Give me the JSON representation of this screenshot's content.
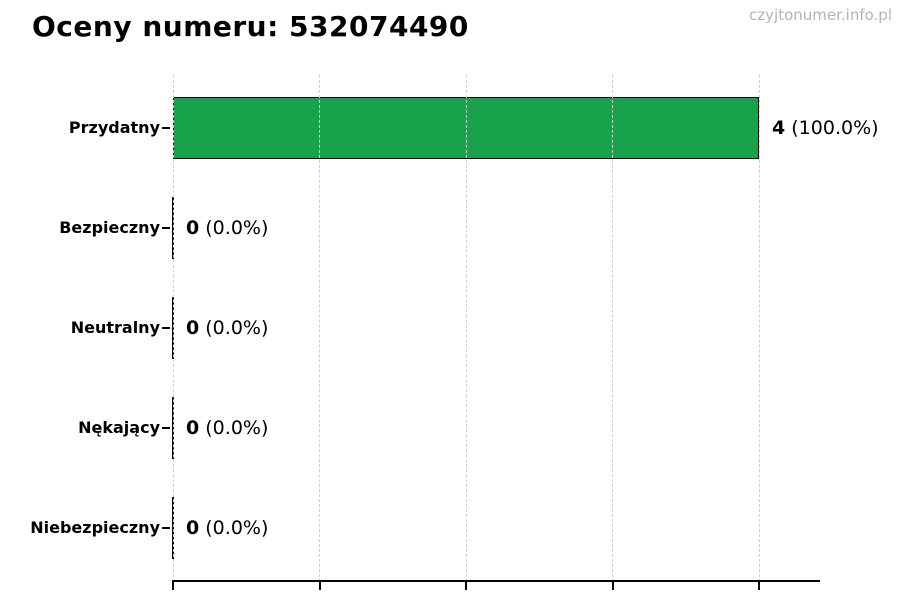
{
  "header": {
    "title": "Oceny numeru: 532074490",
    "watermark": "czyjtonumer.info.pl"
  },
  "chart_data": {
    "type": "bar",
    "orientation": "horizontal",
    "title": "Oceny numeru: 532074490",
    "watermark": "czyjtonumer.info.pl",
    "categories": [
      "Przydatny",
      "Bezpieczny",
      "Neutralny",
      "Nękający",
      "Niebezpieczny"
    ],
    "values": [
      4,
      0,
      0,
      0,
      0
    ],
    "percent_labels": [
      "(100.0%)",
      "(0.0%)",
      "(0.0%)",
      "(0.0%)",
      "(0.0%)"
    ],
    "xlim": [
      0,
      4.4
    ],
    "x_ticks": [
      0,
      1,
      2,
      3,
      4
    ],
    "x_tick_labels_visible": false,
    "grid": "vertical-dashed",
    "legend": "none",
    "colors": {
      "bar_fill": "#17a24b",
      "bar_edge": "#000000",
      "grid_line": "#cfcfcf",
      "axis_line": "#000000",
      "title_text": "#000000",
      "watermark_text": "#b4b4b4"
    }
  }
}
